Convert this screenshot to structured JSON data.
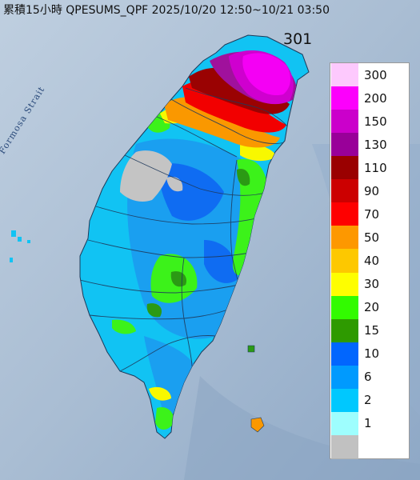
{
  "header": {
    "title": "累積15小時 QPESUMS_QPF 2025/10/20 12:50~10/21 03:50",
    "max_value": "301"
  },
  "map": {
    "water_label": "Formosa Strait"
  },
  "legend": {
    "levels": [
      {
        "label": "300",
        "color": "#fdc9fd"
      },
      {
        "label": "200",
        "color": "#fc00fc"
      },
      {
        "label": "150",
        "color": "#cb00cb"
      },
      {
        "label": "130",
        "color": "#990099"
      },
      {
        "label": "110",
        "color": "#9a0000"
      },
      {
        "label": "90",
        "color": "#cc0000"
      },
      {
        "label": "70",
        "color": "#fe0000"
      },
      {
        "label": "50",
        "color": "#fd9800"
      },
      {
        "label": "40",
        "color": "#fdc800"
      },
      {
        "label": "30",
        "color": "#fefe00"
      },
      {
        "label": "20",
        "color": "#32fb00"
      },
      {
        "label": "15",
        "color": "#2e9a00"
      },
      {
        "label": "10",
        "color": "#0166fe"
      },
      {
        "label": "6",
        "color": "#009afe"
      },
      {
        "label": "2",
        "color": "#00c8fe"
      },
      {
        "label": "1",
        "color": "#9efefe"
      },
      {
        "label": "",
        "color": "#c1c1c1"
      }
    ]
  }
}
